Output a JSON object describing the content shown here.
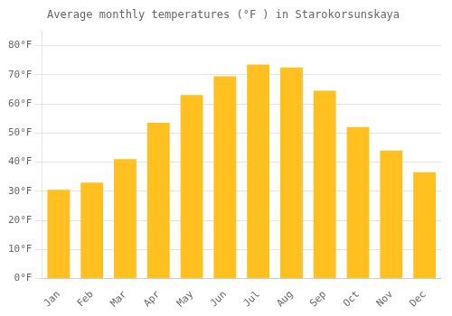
{
  "chart_data": {
    "type": "bar",
    "title": "Average monthly temperatures (°F ) in Starokorsunskaya",
    "categories": [
      "Jan",
      "Feb",
      "Mar",
      "Apr",
      "May",
      "Jun",
      "Jul",
      "Aug",
      "Sep",
      "Oct",
      "Nov",
      "Dec"
    ],
    "values": [
      30.5,
      33.0,
      41.0,
      53.5,
      63.0,
      69.5,
      73.5,
      72.5,
      64.5,
      52.0,
      44.0,
      36.5
    ],
    "color": "#FFC020",
    "ylim": [
      0,
      85
    ],
    "yticks": [
      {
        "value": 0,
        "label": "0°F"
      },
      {
        "value": 10,
        "label": "10°F"
      },
      {
        "value": 20,
        "label": "20°F"
      },
      {
        "value": 30,
        "label": "30°F"
      },
      {
        "value": 40,
        "label": "40°F"
      },
      {
        "value": 50,
        "label": "50°F"
      },
      {
        "value": 60,
        "label": "60°F"
      },
      {
        "value": 70,
        "label": "70°F"
      },
      {
        "value": 80,
        "label": "80°F"
      }
    ],
    "grid": true
  }
}
